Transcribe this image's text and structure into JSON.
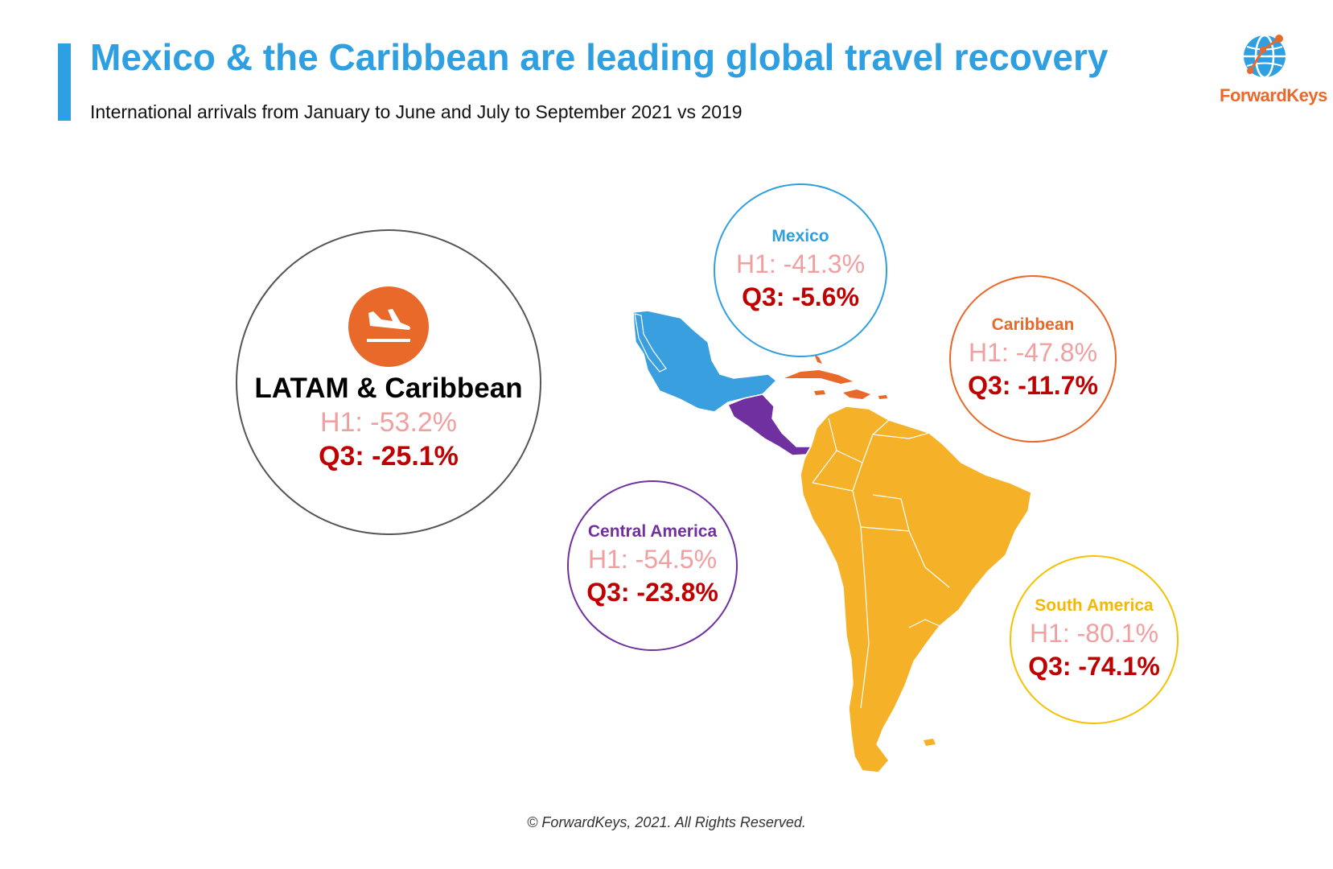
{
  "header": {
    "title": "Mexico & the Caribbean are leading global travel recovery",
    "subtitle": "International arrivals from January to June and July to September 2021 vs 2019"
  },
  "brand": {
    "name": "ForwardKeys",
    "accent_color": "#2E9FE0",
    "logo_color": "#E8692A"
  },
  "summary": {
    "icon": "plane-arrival-icon",
    "label": "LATAM & Caribbean",
    "h1": "H1: -53.2%",
    "q3": "Q3: -25.1%"
  },
  "regions": [
    {
      "name": "Mexico",
      "h1": "H1: -41.3%",
      "q3": "Q3: -5.6%",
      "color": "#2E9FE0"
    },
    {
      "name": "Caribbean",
      "h1": "H1: -47.8%",
      "q3": "Q3: -11.7%",
      "color": "#E8692A"
    },
    {
      "name": "Central America",
      "h1": "H1: -54.5%",
      "q3": "Q3: -23.8%",
      "color": "#7030A0"
    },
    {
      "name": "South America",
      "h1": "H1: -80.1%",
      "q3": "Q3: -74.1%",
      "color": "#F5B827"
    }
  ],
  "colors": {
    "h1_text": "#F0A0A0",
    "q3_text": "#C00000",
    "summary_border": "#555555"
  },
  "footer": "© ForwardKeys, 2021. All Rights Reserved."
}
